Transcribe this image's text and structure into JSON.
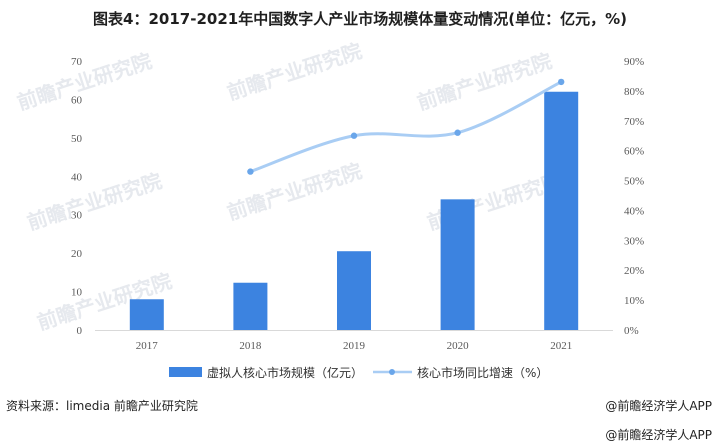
{
  "title": "图表4：2017-2021年中国数字人产业市场规模体量变动情况(单位：亿元，%)",
  "watermark": "前瞻产业研究院",
  "footer": {
    "source": "资料来源：limedia 前瞻产业研究院",
    "brand": "@前瞻经济学人APP",
    "brand2": "@前瞻经济学人APP"
  },
  "colors": {
    "bar": "#3c83e0",
    "line": "#a9cdf4",
    "marker": "#6aa6ea"
  },
  "chart_data": {
    "type": "bar",
    "categories": [
      "2017",
      "2018",
      "2019",
      "2020",
      "2021"
    ],
    "series": [
      {
        "name": "虚拟人核心市场规模（亿元）",
        "type": "bar",
        "axis": "left",
        "values": [
          8,
          12.3,
          20.5,
          34,
          62
        ]
      },
      {
        "name": "核心市场同比增速（%）",
        "type": "line",
        "axis": "right",
        "values": [
          null,
          53,
          65,
          66,
          83
        ]
      }
    ],
    "y_left": {
      "range": [
        0,
        70
      ],
      "ticks": [
        "0",
        "10",
        "20",
        "30",
        "40",
        "50",
        "60",
        "70"
      ]
    },
    "y_right": {
      "range": [
        0,
        90
      ],
      "ticks": [
        "0%",
        "10%",
        "20%",
        "30%",
        "40%",
        "50%",
        "60%",
        "70%",
        "80%",
        "90%"
      ]
    },
    "grid": false,
    "legend": "bottom"
  }
}
